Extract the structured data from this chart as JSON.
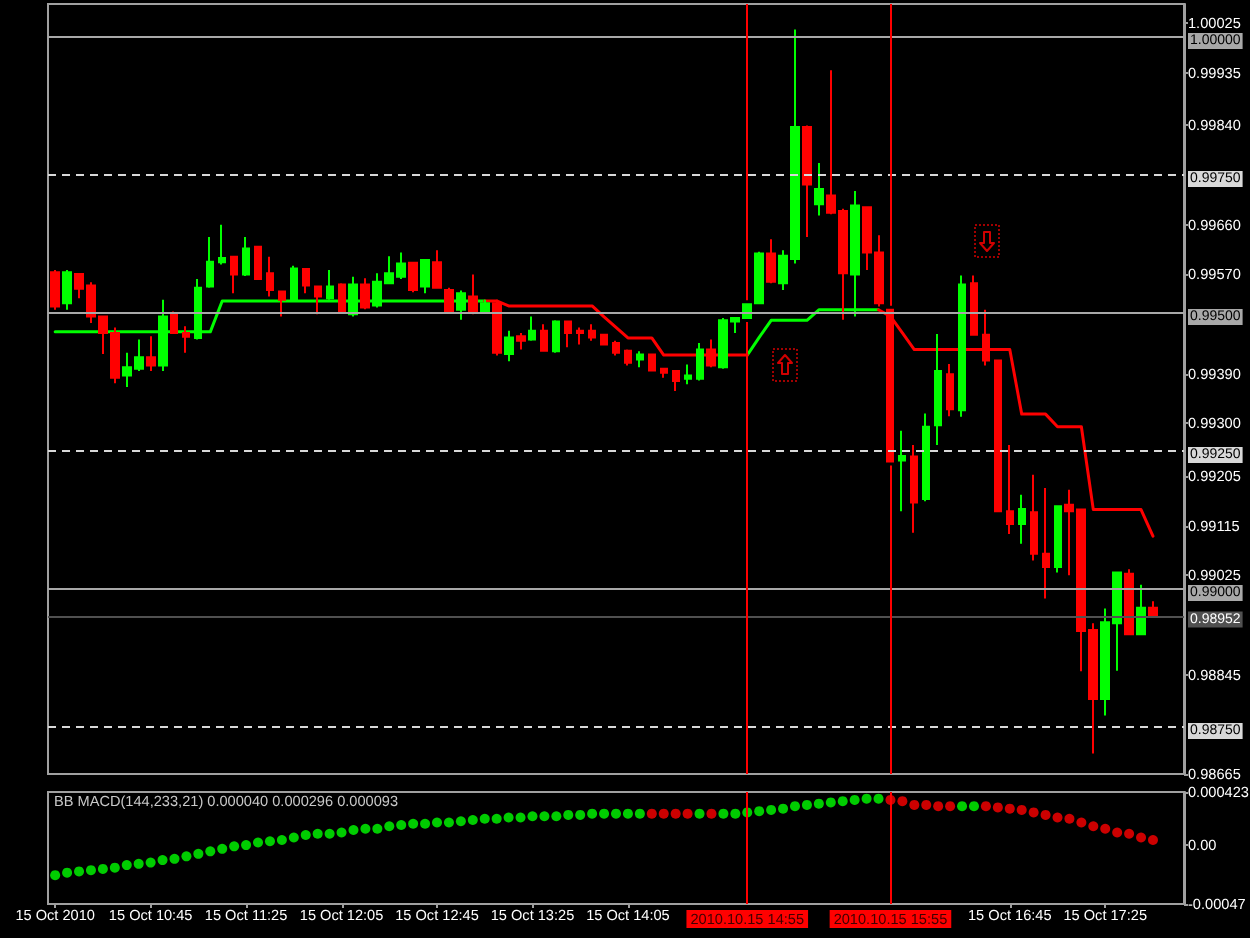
{
  "chart_data": [
    {
      "type": "candlestick",
      "x": [
        "2010-10-15T10:05",
        "2010-10-15T10:10",
        "2010-10-15T10:15",
        "2010-10-15T10:20",
        "2010-10-15T10:25",
        "2010-10-15T10:30",
        "2010-10-15T10:35",
        "2010-10-15T10:40",
        "2010-10-15T10:45",
        "2010-10-15T10:50",
        "2010-10-15T10:55",
        "2010-10-15T11:00",
        "2010-10-15T11:05",
        "2010-10-15T11:10",
        "2010-10-15T11:15",
        "2010-10-15T11:20",
        "2010-10-15T11:25",
        "2010-10-15T11:30",
        "2010-10-15T11:35",
        "2010-10-15T11:40",
        "2010-10-15T11:45",
        "2010-10-15T11:50",
        "2010-10-15T11:55",
        "2010-10-15T12:00",
        "2010-10-15T12:05",
        "2010-10-15T12:10",
        "2010-10-15T12:15",
        "2010-10-15T12:20",
        "2010-10-15T12:25",
        "2010-10-15T12:30",
        "2010-10-15T12:35",
        "2010-10-15T12:40",
        "2010-10-15T12:45",
        "2010-10-15T12:50",
        "2010-10-15T12:55",
        "2010-10-15T13:00",
        "2010-10-15T13:05",
        "2010-10-15T13:10",
        "2010-10-15T13:15",
        "2010-10-15T13:20",
        "2010-10-15T13:25",
        "2010-10-15T13:30",
        "2010-10-15T13:35",
        "2010-10-15T13:40",
        "2010-10-15T13:45",
        "2010-10-15T13:50",
        "2010-10-15T13:55",
        "2010-10-15T14:00",
        "2010-10-15T14:05",
        "2010-10-15T14:10",
        "2010-10-15T14:15",
        "2010-10-15T14:20",
        "2010-10-15T14:25",
        "2010-10-15T14:30",
        "2010-10-15T14:35",
        "2010-10-15T14:40",
        "2010-10-15T14:45",
        "2010-10-15T14:50",
        "2010-10-15T14:55",
        "2010-10-15T15:00",
        "2010-10-15T15:05",
        "2010-10-15T15:10",
        "2010-10-15T15:15",
        "2010-10-15T15:20",
        "2010-10-15T15:25",
        "2010-10-15T15:30",
        "2010-10-15T15:35",
        "2010-10-15T15:40",
        "2010-10-15T15:45",
        "2010-10-15T15:50",
        "2010-10-15T15:55",
        "2010-10-15T16:00",
        "2010-10-15T16:05",
        "2010-10-15T16:10",
        "2010-10-15T16:15",
        "2010-10-15T16:20",
        "2010-10-15T16:25",
        "2010-10-15T16:30",
        "2010-10-15T16:35",
        "2010-10-15T16:40",
        "2010-10-15T16:45",
        "2010-10-15T16:50",
        "2010-10-15T16:55",
        "2010-10-15T17:00",
        "2010-10-15T17:05",
        "2010-10-15T17:10",
        "2010-10-15T17:15",
        "2010-10-15T17:20",
        "2010-10-15T17:25",
        "2010-10-15T17:30",
        "2010-10-15T17:35",
        "2010-10-15T17:40",
        "2010-10-15T17:45"
      ],
      "ohlc": [
        [
          0.99574,
          0.99578,
          0.99506,
          0.99512
        ],
        [
          0.99518,
          0.99578,
          0.99506,
          0.99574
        ],
        [
          0.99571,
          0.99571,
          0.99527,
          0.99544
        ],
        [
          0.9955,
          0.99556,
          0.99482,
          0.99494
        ],
        [
          0.99494,
          0.99495,
          0.99426,
          0.99464
        ],
        [
          0.99464,
          0.99474,
          0.99373,
          0.99383
        ],
        [
          0.99387,
          0.99428,
          0.99366,
          0.99402
        ],
        [
          0.99399,
          0.99452,
          0.99395,
          0.9942
        ],
        [
          0.9942,
          0.99458,
          0.99395,
          0.99405
        ],
        [
          0.99405,
          0.99524,
          0.99395,
          0.99494
        ],
        [
          0.99498,
          0.99503,
          0.99462,
          0.99464
        ],
        [
          0.99464,
          0.99476,
          0.99428,
          0.99457
        ],
        [
          0.99455,
          0.99562,
          0.99452,
          0.99546
        ],
        [
          0.99548,
          0.99638,
          0.99546,
          0.99593
        ],
        [
          0.99592,
          0.9966,
          0.99588,
          0.996
        ],
        [
          0.99602,
          0.99603,
          0.99536,
          0.9957
        ],
        [
          0.9957,
          0.99638,
          0.99567,
          0.99617
        ],
        [
          0.9962,
          0.99621,
          0.99562,
          0.99562
        ],
        [
          0.99572,
          0.99602,
          0.9953,
          0.99542
        ],
        [
          0.99539,
          0.99539,
          0.99494,
          0.99524
        ],
        [
          0.99522,
          0.99586,
          0.9952,
          0.99581
        ],
        [
          0.9958,
          0.9958,
          0.99536,
          0.9955
        ],
        [
          0.99548,
          0.99548,
          0.99498,
          0.9953
        ],
        [
          0.99527,
          0.99578,
          0.99524,
          0.99548
        ],
        [
          0.99552,
          0.99554,
          0.995,
          0.99503
        ],
        [
          0.99498,
          0.99566,
          0.99494,
          0.99552
        ],
        [
          0.99552,
          0.99563,
          0.99507,
          0.9951
        ],
        [
          0.99514,
          0.99572,
          0.9951,
          0.99557
        ],
        [
          0.99554,
          0.99603,
          0.99553,
          0.99572
        ],
        [
          0.99566,
          0.9961,
          0.99562,
          0.9959
        ],
        [
          0.99591,
          0.99591,
          0.99538,
          0.99542
        ],
        [
          0.99548,
          0.99598,
          0.99536,
          0.99596
        ],
        [
          0.99592,
          0.99614,
          0.99544,
          0.99546
        ],
        [
          0.99542,
          0.99546,
          0.99499,
          0.99503
        ],
        [
          0.99506,
          0.99541,
          0.99488,
          0.99536
        ],
        [
          0.9953,
          0.9957,
          0.99498,
          0.995
        ],
        [
          0.995,
          0.99524,
          0.99499,
          0.99518
        ],
        [
          0.99518,
          0.99524,
          0.99423,
          0.99428
        ],
        [
          0.99426,
          0.99468,
          0.99413,
          0.99456
        ],
        [
          0.99458,
          0.99464,
          0.99434,
          0.9945
        ],
        [
          0.99452,
          0.99494,
          0.9945,
          0.99468
        ],
        [
          0.99468,
          0.9948,
          0.99431,
          0.99432
        ],
        [
          0.99431,
          0.99487,
          0.99428,
          0.99485
        ],
        [
          0.99485,
          0.99485,
          0.99438,
          0.99464
        ],
        [
          0.99468,
          0.99474,
          0.99443,
          0.99464
        ],
        [
          0.99468,
          0.9948,
          0.9945,
          0.99456
        ],
        [
          0.99461,
          0.99461,
          0.99442,
          0.99443
        ],
        [
          0.99446,
          0.9945,
          0.99423,
          0.99428
        ],
        [
          0.99432,
          0.99434,
          0.99405,
          0.9941
        ],
        [
          0.99416,
          0.99431,
          0.99402,
          0.99425
        ],
        [
          0.99425,
          0.99425,
          0.99395,
          0.99396
        ],
        [
          0.99399,
          0.99399,
          0.99383,
          0.99392
        ],
        [
          0.99395,
          0.99396,
          0.99359,
          0.99377
        ],
        [
          0.99381,
          0.99407,
          0.99371,
          0.99387
        ],
        [
          0.99381,
          0.99446,
          0.99378,
          0.99434
        ],
        [
          0.99434,
          0.99452,
          0.99402,
          0.99405
        ],
        [
          0.99402,
          0.99491,
          0.99399,
          0.99487
        ],
        [
          0.99485,
          0.99491,
          0.99464,
          0.99491
        ],
        [
          0.99491,
          0.99516,
          0.99491,
          0.99516
        ],
        [
          0.99518,
          0.99611,
          0.99516,
          0.99608
        ],
        [
          0.99608,
          0.99634,
          0.99554,
          0.99557
        ],
        [
          0.99554,
          0.99614,
          0.99542,
          0.99604
        ],
        [
          0.99598,
          1.00014,
          0.9959,
          0.99837
        ],
        [
          0.99837,
          0.9984,
          0.99638,
          0.99733
        ],
        [
          0.99697,
          0.99772,
          0.99677,
          0.99725
        ],
        [
          0.99713,
          0.9994,
          0.99679,
          0.99682
        ],
        [
          0.99685,
          0.99689,
          0.99488,
          0.99572
        ],
        [
          0.9957,
          0.99721,
          0.99494,
          0.99695
        ],
        [
          0.99692,
          0.99692,
          0.99578,
          0.9961
        ],
        [
          0.9961,
          0.99641,
          0.99512,
          0.99518
        ],
        [
          0.99506,
          0.99506,
          0.99231,
          0.99231
        ],
        [
          0.99233,
          0.99287,
          0.99141,
          0.99241
        ],
        [
          0.9924,
          0.99261,
          0.99102,
          0.99157
        ],
        [
          0.99163,
          0.99318,
          0.99159,
          0.99294
        ],
        [
          0.99297,
          0.99462,
          0.99261,
          0.99395
        ],
        [
          0.99389,
          0.99408,
          0.99313,
          0.99326
        ],
        [
          0.99324,
          0.99568,
          0.99312,
          0.99552
        ],
        [
          0.99554,
          0.99568,
          0.99461,
          0.99461
        ],
        [
          0.99461,
          0.99506,
          0.99405,
          0.99414
        ],
        [
          0.99414,
          0.99414,
          0.99141,
          0.99141
        ],
        [
          0.99141,
          0.99261,
          0.991,
          0.99118
        ],
        [
          0.99118,
          0.99171,
          0.99082,
          0.99145
        ],
        [
          0.99139,
          0.99207,
          0.99052,
          0.99064
        ],
        [
          0.99064,
          0.99183,
          0.98983,
          0.9904
        ],
        [
          0.9904,
          0.9915,
          0.9903,
          0.9915
        ],
        [
          0.99153,
          0.9918,
          0.99025,
          0.99141
        ],
        [
          0.99144,
          0.99144,
          0.98851,
          0.98924
        ],
        [
          0.98926,
          0.98938,
          0.98702,
          0.98801
        ],
        [
          0.98801,
          0.98965,
          0.98771,
          0.9894
        ],
        [
          0.98938,
          0.9903,
          0.98852,
          0.9903
        ],
        [
          0.99028,
          0.99036,
          0.98918,
          0.98918
        ],
        [
          0.98918,
          0.99008,
          0.98918,
          0.98966
        ],
        [
          0.98966,
          0.98978,
          0.98952,
          0.98952
        ]
      ],
      "colors": [
        "#ff0000",
        "#00ff00",
        "#ff0000",
        "#ff0000",
        "#ff0000",
        "#ff0000",
        "#00ff00",
        "#00ff00",
        "#ff0000",
        "#00ff00",
        "#ff0000",
        "#ff0000",
        "#00ff00",
        "#00ff00",
        "#00ff00",
        "#ff0000",
        "#00ff00",
        "#ff0000",
        "#ff0000",
        "#ff0000",
        "#00ff00",
        "#ff0000",
        "#ff0000",
        "#00ff00",
        "#ff0000",
        "#00ff00",
        "#ff0000",
        "#00ff00",
        "#00ff00",
        "#00ff00",
        "#ff0000",
        "#00ff00",
        "#ff0000",
        "#ff0000",
        "#00ff00",
        "#ff0000",
        "#00ff00",
        "#ff0000",
        "#00ff00",
        "#ff0000",
        "#00ff00",
        "#ff0000",
        "#00ff00",
        "#ff0000",
        "#ff0000",
        "#ff0000",
        "#ff0000",
        "#ff0000",
        "#ff0000",
        "#00ff00",
        "#ff0000",
        "#ff0000",
        "#ff0000",
        "#00ff00",
        "#00ff00",
        "#ff0000",
        "#00ff00",
        "#00ff00",
        "#00ff00",
        "#00ff00",
        "#ff0000",
        "#00ff00",
        "#00ff00",
        "#ff0000",
        "#00ff00",
        "#ff0000",
        "#ff0000",
        "#00ff00",
        "#ff0000",
        "#ff0000",
        "#ff0000",
        "#00ff00",
        "#ff0000",
        "#00ff00",
        "#00ff00",
        "#ff0000",
        "#00ff00",
        "#ff0000",
        "#ff0000",
        "#ff0000",
        "#ff0000",
        "#00ff00",
        "#ff0000",
        "#ff0000",
        "#00ff00",
        "#ff0000",
        "#ff0000",
        "#ff0000",
        "#00ff00",
        "#00ff00",
        "#ff0000",
        "#00ff00",
        "#ff0000"
      ],
      "series": [
        {
          "type": "line",
          "color": "#00ff00",
          "values": [
            0.99466,
            0.99466,
            0.99466,
            0.99466,
            0.99466,
            0.99466,
            0.99466,
            0.99466,
            0.99466,
            0.99466,
            0.99466,
            0.99466,
            0.99466,
            0.99466,
            0.99522,
            0.99522,
            0.99522,
            0.99522,
            0.99522,
            0.99522,
            0.99522,
            0.99522,
            0.99522,
            0.99522,
            0.99522,
            0.99522,
            0.99522,
            0.99522,
            0.99522,
            0.99522,
            0.99522,
            0.99522,
            0.99522,
            0.99522,
            0.99522,
            0.99522,
            0.99522,
            null,
            null,
            null,
            null,
            null,
            null,
            null,
            null,
            null,
            null,
            null,
            null,
            null,
            null,
            null,
            null,
            null,
            null,
            null,
            null,
            null,
            0.99424,
            0.99456,
            0.99487,
            0.99487,
            0.99487,
            0.99487,
            0.99506,
            0.99506,
            0.99506,
            0.99506,
            0.99506,
            0.99506,
            null,
            null,
            null,
            null,
            null,
            null,
            null,
            null,
            null,
            null,
            null,
            null,
            null,
            null,
            null,
            null,
            null,
            null,
            null,
            null,
            null,
            null,
            null
          ]
        },
        {
          "type": "line",
          "color": "#ff0000",
          "values": [
            null,
            null,
            null,
            null,
            null,
            null,
            null,
            null,
            null,
            null,
            null,
            null,
            null,
            null,
            null,
            null,
            null,
            null,
            null,
            null,
            null,
            null,
            null,
            null,
            null,
            null,
            null,
            null,
            null,
            null,
            null,
            null,
            null,
            null,
            null,
            null,
            0.99522,
            0.99522,
            0.99513,
            0.99513,
            0.99513,
            0.99513,
            0.99513,
            0.99513,
            0.99513,
            0.99513,
            0.99493,
            0.99474,
            0.99455,
            0.99455,
            0.99455,
            0.99424,
            0.99424,
            0.99424,
            0.99424,
            0.99424,
            0.99424,
            0.99424,
            0.99424,
            null,
            null,
            null,
            null,
            null,
            null,
            null,
            null,
            null,
            null,
            0.99506,
            0.99494,
            0.99464,
            0.99434,
            0.99434,
            0.99434,
            0.99434,
            0.99434,
            0.99434,
            0.99434,
            0.99434,
            0.99434,
            0.99317,
            0.99317,
            0.99317,
            0.99294,
            0.99294,
            0.99294,
            0.99144,
            0.99144,
            0.99144,
            0.99144,
            0.99144,
            0.99096
          ]
        }
      ],
      "xlim": [
        "2010-10-15T10:02",
        "2010-10-15T17:58"
      ],
      "ylim": [
        0.98665,
        1.0006
      ],
      "yticks": [
        0.98665,
        0.98845,
        0.99025,
        0.99115,
        0.99205,
        {
          "value": 0.993,
          "label": "0.99300"
        },
        {
          "value": 0.9939,
          "label": "0.99390"
        },
        {
          "value": 0.9957,
          "label": "0.99570"
        },
        {
          "value": 0.9966,
          "label": "0.99660"
        },
        {
          "value": 0.9984,
          "label": "0.99840"
        },
        0.99935,
        1.00025
      ],
      "ref_lines": [
        {
          "axis": "y",
          "value": 1,
          "label": "1.00000",
          "color": "#a8a8a8",
          "line_style": "solid"
        },
        {
          "axis": "y",
          "value": 0.9975,
          "label": "0.99750",
          "color": "#d8d8d8",
          "line_style": "dashed"
        },
        {
          "axis": "y",
          "value": 0.995,
          "label": "0.99500",
          "color": "#a8a8a8",
          "line_style": "solid"
        },
        {
          "axis": "y",
          "value": 0.9925,
          "label": "0.99250",
          "color": "#d8d8d8",
          "line_style": "dashed"
        },
        {
          "axis": "y",
          "value": 0.99,
          "label": "0.99000",
          "color": "#a8a8a8",
          "line_style": "solid"
        },
        {
          "axis": "y",
          "value": 0.98952,
          "label": "0.98952",
          "color": "#505050",
          "line_style": "solid"
        },
        {
          "axis": "y",
          "value": 0.9875,
          "label": "0.98750",
          "color": "#d8d8d8",
          "line_style": "dashed"
        },
        {
          "axis": "x",
          "value": "2010-10-15T14:55",
          "color": "#ff0000"
        },
        {
          "axis": "x",
          "value": "2010-10-15T15:55",
          "color": "#ff0000"
        }
      ],
      "tick_labels": "y",
      "marker": "none",
      "line_style": "solid"
    },
    {
      "type": "scatter",
      "title": "BB MACD(144,233,21) 0.000040 0.000296 0.000093",
      "x": [
        "2010-10-15T10:05",
        "2010-10-15T10:10",
        "2010-10-15T10:15",
        "2010-10-15T10:20",
        "2010-10-15T10:25",
        "2010-10-15T10:30",
        "2010-10-15T10:35",
        "2010-10-15T10:40",
        "2010-10-15T10:45",
        "2010-10-15T10:50",
        "2010-10-15T10:55",
        "2010-10-15T11:00",
        "2010-10-15T11:05",
        "2010-10-15T11:10",
        "2010-10-15T11:15",
        "2010-10-15T11:20",
        "2010-10-15T11:25",
        "2010-10-15T11:30",
        "2010-10-15T11:35",
        "2010-10-15T11:40",
        "2010-10-15T11:45",
        "2010-10-15T11:50",
        "2010-10-15T11:55",
        "2010-10-15T12:00",
        "2010-10-15T12:05",
        "2010-10-15T12:10",
        "2010-10-15T12:15",
        "2010-10-15T12:20",
        "2010-10-15T12:25",
        "2010-10-15T12:30",
        "2010-10-15T12:35",
        "2010-10-15T12:40",
        "2010-10-15T12:45",
        "2010-10-15T12:50",
        "2010-10-15T12:55",
        "2010-10-15T13:00",
        "2010-10-15T13:05",
        "2010-10-15T13:10",
        "2010-10-15T13:15",
        "2010-10-15T13:20",
        "2010-10-15T13:25",
        "2010-10-15T13:30",
        "2010-10-15T13:35",
        "2010-10-15T13:40",
        "2010-10-15T13:45",
        "2010-10-15T13:50",
        "2010-10-15T13:55",
        "2010-10-15T14:00",
        "2010-10-15T14:05",
        "2010-10-15T14:10",
        "2010-10-15T14:15",
        "2010-10-15T14:20",
        "2010-10-15T14:25",
        "2010-10-15T14:30",
        "2010-10-15T14:35",
        "2010-10-15T14:40",
        "2010-10-15T14:45",
        "2010-10-15T14:50",
        "2010-10-15T14:55",
        "2010-10-15T15:00",
        "2010-10-15T15:05",
        "2010-10-15T15:10",
        "2010-10-15T15:15",
        "2010-10-15T15:20",
        "2010-10-15T15:25",
        "2010-10-15T15:30",
        "2010-10-15T15:35",
        "2010-10-15T15:40",
        "2010-10-15T15:45",
        "2010-10-15T15:50",
        "2010-10-15T15:55",
        "2010-10-15T16:00",
        "2010-10-15T16:05",
        "2010-10-15T16:10",
        "2010-10-15T16:15",
        "2010-10-15T16:20",
        "2010-10-15T16:25",
        "2010-10-15T16:30",
        "2010-10-15T16:35",
        "2010-10-15T16:40",
        "2010-10-15T16:45",
        "2010-10-15T16:50",
        "2010-10-15T16:55",
        "2010-10-15T17:00",
        "2010-10-15T17:05",
        "2010-10-15T17:10",
        "2010-10-15T17:15",
        "2010-10-15T17:20",
        "2010-10-15T17:25",
        "2010-10-15T17:30",
        "2010-10-15T17:35",
        "2010-10-15T17:40",
        "2010-10-15T17:45"
      ],
      "values": [
        -0.00024,
        -0.00022,
        -0.00021,
        -0.0002,
        -0.00019,
        -0.00018,
        -0.00016,
        -0.00015,
        -0.00014,
        -0.00012,
        -0.00011,
        -9e-05,
        -7e-05,
        -5e-05,
        -3e-05,
        -1e-05,
        0,
        2e-05,
        3e-05,
        4e-05,
        6e-05,
        8e-05,
        9e-05,
        9e-05,
        0.0001,
        0.00012,
        0.00013,
        0.00013,
        0.00015,
        0.00016,
        0.00017,
        0.00017,
        0.00018,
        0.00018,
        0.00019,
        0.0002,
        0.00021,
        0.00021,
        0.00022,
        0.00022,
        0.00023,
        0.00023,
        0.00023,
        0.00024,
        0.00024,
        0.00025,
        0.00025,
        0.00025,
        0.00025,
        0.00025,
        0.00025,
        0.00025,
        0.00025,
        0.00025,
        0.00025,
        0.00025,
        0.00025,
        0.00025,
        0.00026,
        0.00027,
        0.00028,
        0.00029,
        0.00031,
        0.00032,
        0.00033,
        0.00034,
        0.00035,
        0.00036,
        0.00037,
        0.00037,
        0.00036,
        0.00035,
        0.00032,
        0.00032,
        0.00031,
        0.00031,
        0.00031,
        0.00031,
        0.00031,
        0.0003,
        0.00029,
        0.00028,
        0.00026,
        0.00024,
        0.00022,
        0.00021,
        0.00018,
        0.00015,
        0.00013,
        0.0001,
        9e-05,
        6e-05,
        4e-05
      ],
      "colors": [
        "#00ff00",
        "#00ff00",
        "#00ff00",
        "#00ff00",
        "#00ff00",
        "#00ff00",
        "#00ff00",
        "#00ff00",
        "#00ff00",
        "#00ff00",
        "#00ff00",
        "#00ff00",
        "#00ff00",
        "#00ff00",
        "#00ff00",
        "#00ff00",
        "#00ff00",
        "#00ff00",
        "#00ff00",
        "#00ff00",
        "#00ff00",
        "#00ff00",
        "#00ff00",
        "#00ff00",
        "#00ff00",
        "#00ff00",
        "#00ff00",
        "#00ff00",
        "#00ff00",
        "#00ff00",
        "#00ff00",
        "#00ff00",
        "#00ff00",
        "#00ff00",
        "#00ff00",
        "#00ff00",
        "#00ff00",
        "#00ff00",
        "#00ff00",
        "#00ff00",
        "#00ff00",
        "#00ff00",
        "#00ff00",
        "#00ff00",
        "#00ff00",
        "#00ff00",
        "#00ff00",
        "#00ff00",
        "#00ff00",
        "#00ff00",
        "#ff0000",
        "#ff0000",
        "#ff0000",
        "#ff0000",
        "#00ff00",
        "#ff0000",
        "#00ff00",
        "#00ff00",
        "#00ff00",
        "#00ff00",
        "#00ff00",
        "#00ff00",
        "#00ff00",
        "#00ff00",
        "#00ff00",
        "#00ff00",
        "#00ff00",
        "#00ff00",
        "#00ff00",
        "#00ff00",
        "#ff0000",
        "#ff0000",
        "#ff0000",
        "#ff0000",
        "#ff0000",
        "#ff0000",
        "#00ff00",
        "#00ff00",
        "#ff0000",
        "#ff0000",
        "#ff0000",
        "#ff0000",
        "#ff0000",
        "#ff0000",
        "#ff0000",
        "#ff0000",
        "#ff0000",
        "#ff0000",
        "#ff0000",
        "#ff0000",
        "#ff0000",
        "#ff0000",
        "#ff0000"
      ],
      "xlim": [
        "2010-10-15T10:02",
        "2010-10-15T17:58"
      ],
      "xticks": [
        {
          "value": "2010-10-15T10:05",
          "label": "15 Oct 2010"
        },
        {
          "value": "2010-10-15T10:45",
          "label": "15 Oct 10:45"
        },
        {
          "value": "2010-10-15T11:25",
          "label": "15 Oct 11:25"
        },
        {
          "value": "2010-10-15T12:05",
          "label": "15 Oct 12:05"
        },
        {
          "value": "2010-10-15T12:45",
          "label": "15 Oct 12:45"
        },
        {
          "value": "2010-10-15T13:25",
          "label": "15 Oct 13:25"
        },
        {
          "value": "2010-10-15T14:05",
          "label": "15 Oct 14:05"
        },
        {
          "value": "2010-10-15T16:45",
          "label": "15 Oct 16:45"
        },
        {
          "value": "2010-10-15T17:25",
          "label": "15 Oct 17:25"
        }
      ],
      "ylim": [
        -0.00047,
        0.000423
      ],
      "yticks": [
        0.000423,
        {
          "value": 0,
          "label": "0.00"
        },
        -0.00047
      ],
      "ref_lines": [
        {
          "axis": "x",
          "value": "2010-10-15T14:55",
          "label": "2010.10.15 14:55",
          "color": "#ff0000"
        },
        {
          "axis": "x",
          "value": "2010-10-15T15:55",
          "label": "2010.10.15 15:55",
          "color": "#ff0000"
        }
      ],
      "marker": "circle"
    }
  ]
}
